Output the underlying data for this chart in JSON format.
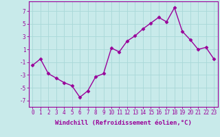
{
  "x": [
    0,
    1,
    2,
    3,
    4,
    5,
    6,
    7,
    8,
    9,
    10,
    11,
    12,
    13,
    14,
    15,
    16,
    17,
    18,
    19,
    20,
    21,
    22,
    23
  ],
  "y": [
    -1.5,
    -0.5,
    -2.8,
    -3.5,
    -4.2,
    -4.7,
    -6.5,
    -5.5,
    -3.3,
    -2.8,
    1.2,
    0.6,
    2.3,
    3.1,
    4.2,
    5.1,
    6.0,
    5.3,
    7.5,
    3.8,
    2.5,
    1.0,
    1.3,
    -0.5
  ],
  "line_color": "#990099",
  "marker": "D",
  "markersize": 2.5,
  "linewidth": 1.0,
  "background_color": "#c8eaea",
  "grid_color": "#a8d8d8",
  "xlabel": "Windchill (Refroidissement éolien,°C)",
  "xlabel_fontsize": 6.5,
  "xlim": [
    -0.5,
    23.5
  ],
  "ylim": [
    -8,
    8.5
  ],
  "yticks": [
    -7,
    -5,
    -3,
    -1,
    1,
    3,
    5,
    7
  ],
  "xticks": [
    0,
    1,
    2,
    3,
    4,
    5,
    6,
    7,
    8,
    9,
    10,
    11,
    12,
    13,
    14,
    15,
    16,
    17,
    18,
    19,
    20,
    21,
    22,
    23
  ],
  "tick_fontsize": 5.5,
  "tick_color": "#990099",
  "axis_color": "#990099"
}
